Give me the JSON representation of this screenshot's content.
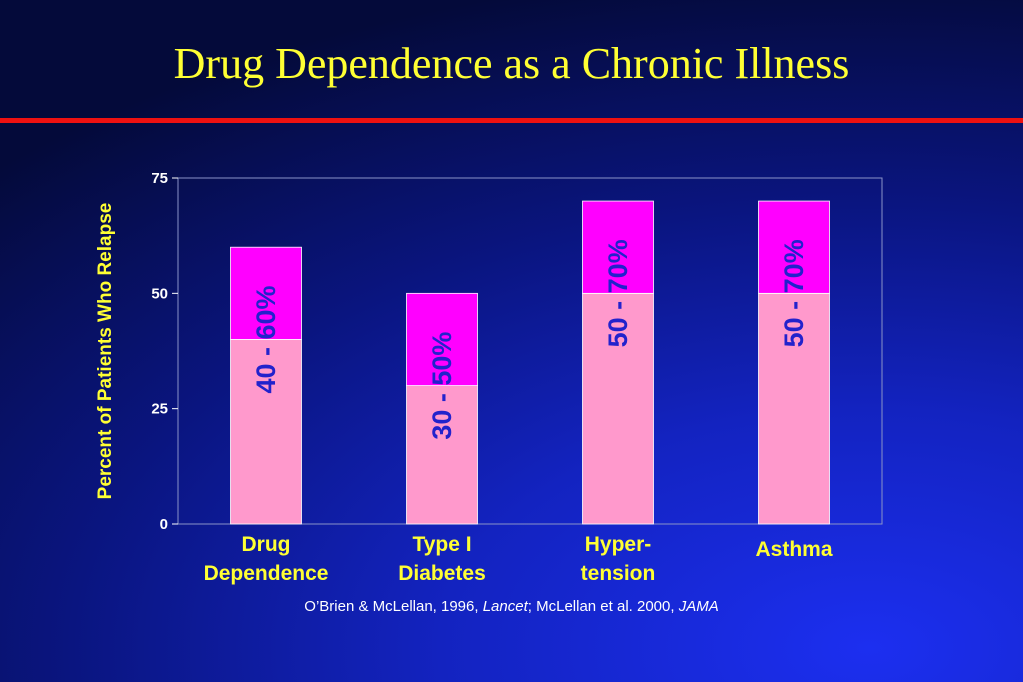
{
  "slide": {
    "title": "Drug Dependence as a Chronic Illness",
    "citation_prefix": "O’Brien & McLellan, 1996, ",
    "citation_journal1": "Lancet",
    "citation_middle": "; McLellan et al. 2000, ",
    "citation_journal2": "JAMA"
  },
  "colors": {
    "background": "#1323c0",
    "title": "#ffff33",
    "rule": "#ee1111",
    "bar_low": "#ff99cc",
    "bar_high": "#ff00ff",
    "range_label": "#2222cc",
    "axis_text": "#ffffff"
  },
  "chart_data": {
    "type": "bar",
    "stacked_range": true,
    "categories": [
      [
        "Drug",
        "Dependence"
      ],
      [
        "Type I",
        "Diabetes"
      ],
      [
        "Hyper-",
        "tension"
      ],
      [
        "Asthma"
      ]
    ],
    "series": [
      {
        "values": [
          40,
          30,
          50,
          50
        ]
      },
      {
        "values": [
          20,
          20,
          20,
          20
        ]
      }
    ],
    "range_labels": [
      "40 - 60%",
      "30 - 50%",
      "50 - 70%",
      "50 - 70%"
    ],
    "ylabel": "Percent of Patients Who Relapse",
    "ylim": [
      0,
      75
    ],
    "yticks": [
      0,
      25,
      50,
      75
    ],
    "grid": false
  }
}
